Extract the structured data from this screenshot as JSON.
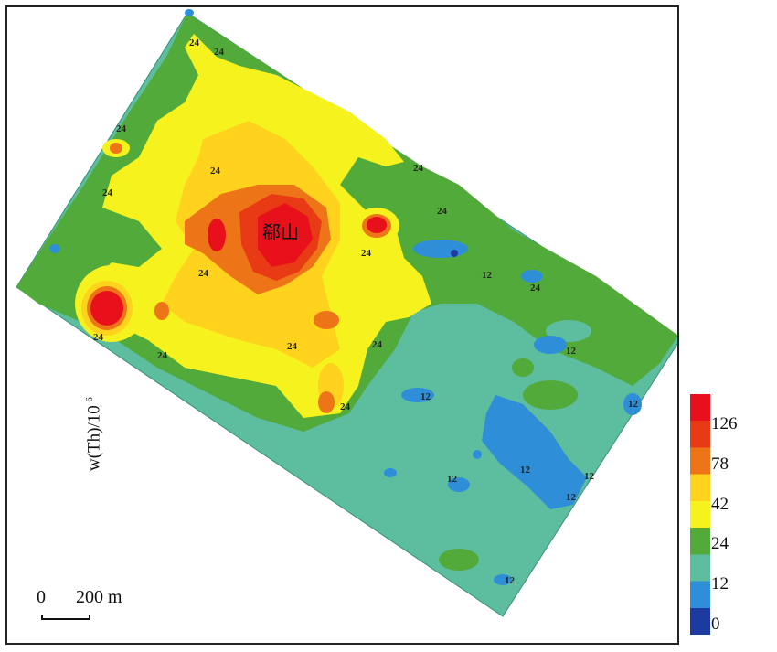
{
  "map": {
    "place_label": "郗山",
    "contour_labels": [
      "24",
      "24",
      "24",
      "24",
      "24",
      "24",
      "24",
      "24",
      "24",
      "24",
      "24",
      "24",
      "24",
      "12",
      "12",
      "12",
      "12",
      "12",
      "12",
      "12",
      "12",
      "12",
      "24",
      "24"
    ]
  },
  "scale": {
    "zero": "0",
    "distance": "200 m"
  },
  "legend": {
    "title": "w(Th)/10",
    "title_exp": "-6",
    "ticks": [
      "126",
      "78",
      "42",
      "24",
      "12",
      "0"
    ],
    "colors": [
      "#e8101a",
      "#e83a14",
      "#ee7418",
      "#ffd21e",
      "#f6f21e",
      "#52aa3a",
      "#5cbd9f",
      "#2e8fd8",
      "#1c3aa0"
    ]
  }
}
